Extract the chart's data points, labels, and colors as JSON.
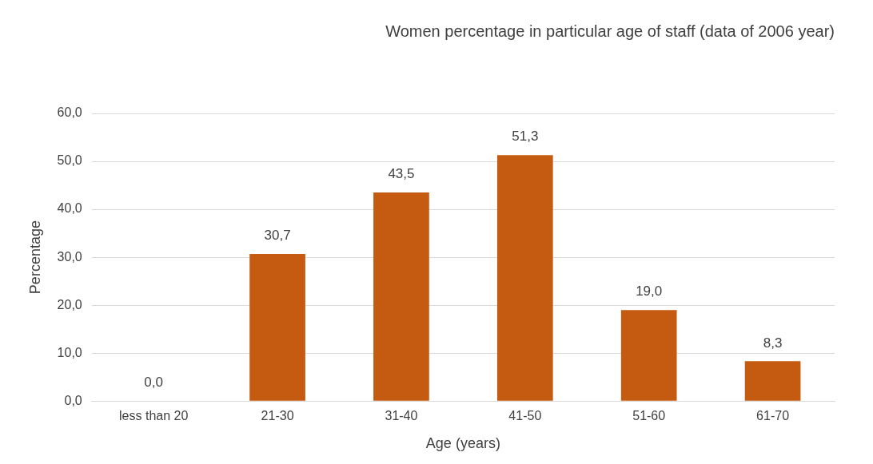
{
  "chart_data": {
    "type": "bar",
    "title": "Women percentage in particular age of staff (data of 2006 year)",
    "xlabel": "Age (years)",
    "ylabel": "Percentage",
    "categories": [
      "less than 20",
      "21-30",
      "31-40",
      "41-50",
      "51-60",
      "61-70"
    ],
    "values": [
      0.0,
      30.7,
      43.5,
      51.3,
      19.0,
      8.3
    ],
    "value_labels": [
      "0,0",
      "30,7",
      "43,5",
      "51,3",
      "19,0",
      "8,3"
    ],
    "color": "#c55a11",
    "ylim": [
      0,
      60
    ],
    "yticks": [
      {
        "value": 0,
        "label": "0,0"
      },
      {
        "value": 10,
        "label": "10,0"
      },
      {
        "value": 20,
        "label": "20,0"
      },
      {
        "value": 30,
        "label": "30,0"
      },
      {
        "value": 40,
        "label": "40,0"
      },
      {
        "value": 50,
        "label": "50,0"
      },
      {
        "value": 60,
        "label": "60,0"
      }
    ],
    "grid": "y",
    "legend": false
  }
}
